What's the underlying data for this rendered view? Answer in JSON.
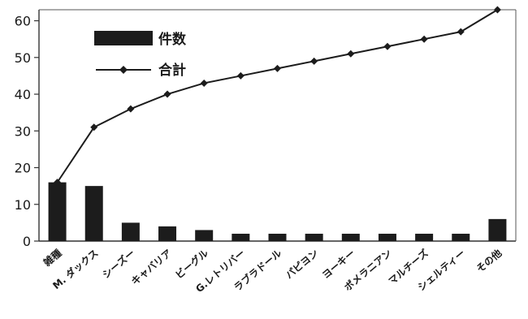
{
  "chart_data": {
    "type": "bar",
    "categories": [
      "雑種",
      "M. ダックス",
      "シーズー",
      "キャバリア",
      "ビーグル",
      "G.レトリバー",
      "ラブラドール",
      "パピヨン",
      "ヨーキー",
      "ポメラニアン",
      "マルチーズ",
      "シェルティー",
      "その他"
    ],
    "series": [
      {
        "name": "件数",
        "type": "bar",
        "values": [
          16,
          15,
          5,
          4,
          3,
          2,
          2,
          2,
          2,
          2,
          2,
          2,
          6
        ]
      },
      {
        "name": "合計",
        "type": "line",
        "values": [
          16,
          31,
          36,
          40,
          43,
          45,
          47,
          49,
          51,
          53,
          55,
          57,
          63
        ]
      }
    ],
    "ylim": [
      0,
      63
    ],
    "yticks": [
      "0",
      "10",
      "20",
      "30",
      "40",
      "50",
      "60"
    ],
    "grid": false,
    "legend_position": "top-left",
    "colors": {
      "bar": "#1c1c1c",
      "line": "#1c1c1c",
      "axis": "#333333"
    }
  }
}
